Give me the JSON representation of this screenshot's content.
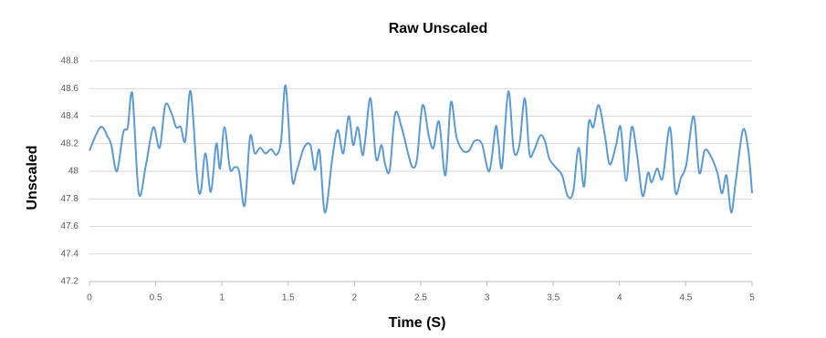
{
  "chart_data": {
    "type": "line",
    "title": "Raw Unscaled",
    "xlabel": "Time (S)",
    "ylabel": "Unscaled",
    "x": [
      0,
      0.083,
      0.138,
      0.165,
      0.207,
      0.255,
      0.289,
      0.324,
      0.372,
      0.427,
      0.482,
      0.53,
      0.572,
      0.62,
      0.654,
      0.689,
      0.723,
      0.764,
      0.813,
      0.84,
      0.875,
      0.916,
      0.957,
      0.985,
      1.019,
      1.06,
      1.095,
      1.129,
      1.171,
      1.212,
      1.247,
      1.288,
      1.329,
      1.371,
      1.412,
      1.446,
      1.481,
      1.529,
      1.563,
      1.618,
      1.667,
      1.701,
      1.736,
      1.777,
      1.832,
      1.873,
      1.915,
      1.956,
      1.99,
      2.025,
      2.059,
      2.08,
      2.121,
      2.163,
      2.204,
      2.231,
      2.266,
      2.307,
      2.355,
      2.404,
      2.438,
      2.472,
      2.514,
      2.562,
      2.596,
      2.638,
      2.686,
      2.727,
      2.769,
      2.817,
      2.865,
      2.906,
      2.961,
      3.017,
      3.065,
      3.085,
      3.113,
      3.161,
      3.202,
      3.244,
      3.285,
      3.32,
      3.354,
      3.402,
      3.437,
      3.471,
      3.526,
      3.567,
      3.609,
      3.65,
      3.691,
      3.733,
      3.767,
      3.802,
      3.843,
      3.891,
      3.926,
      3.974,
      4.008,
      4.05,
      4.091,
      4.132,
      4.174,
      4.215,
      4.242,
      4.284,
      4.325,
      4.38,
      4.421,
      4.463,
      4.504,
      4.559,
      4.601,
      4.642,
      4.683,
      4.738,
      4.773,
      4.807,
      4.842,
      4.876,
      4.931,
      4.972,
      5
    ],
    "series": [
      {
        "color": "#5b9bd5",
        "values": [
          48.15,
          48.32,
          48.25,
          48.19,
          48.0,
          48.28,
          48.32,
          48.56,
          47.84,
          48.05,
          48.32,
          48.17,
          48.48,
          48.42,
          48.32,
          48.32,
          48.22,
          48.58,
          47.95,
          47.85,
          48.13,
          47.85,
          48.2,
          48.02,
          48.32,
          48.02,
          48.03,
          48.0,
          47.75,
          48.25,
          48.13,
          48.17,
          48.13,
          48.16,
          48.12,
          48.22,
          48.62,
          47.95,
          48.0,
          48.17,
          48.19,
          48.01,
          48.15,
          47.7,
          48.09,
          48.3,
          48.13,
          48.4,
          48.19,
          48.32,
          48.12,
          48.22,
          48.53,
          48.09,
          48.19,
          48.05,
          48.01,
          48.42,
          48.32,
          48.13,
          48.03,
          48.09,
          48.48,
          48.25,
          48.17,
          48.36,
          47.97,
          48.5,
          48.25,
          48.15,
          48.15,
          48.22,
          48.2,
          48.0,
          48.32,
          48.22,
          48.03,
          48.58,
          48.15,
          48.19,
          48.53,
          48.13,
          48.15,
          48.26,
          48.22,
          48.09,
          48.02,
          47.97,
          47.82,
          47.85,
          48.17,
          47.89,
          48.35,
          48.32,
          48.48,
          48.25,
          48.05,
          48.19,
          48.32,
          47.93,
          48.32,
          48.12,
          47.82,
          47.99,
          47.92,
          48.02,
          47.95,
          48.32,
          47.85,
          47.95,
          48.05,
          48.4,
          47.99,
          48.15,
          48.12,
          47.99,
          47.84,
          47.97,
          47.7,
          47.92,
          48.3,
          48.15,
          47.84
        ]
      }
    ],
    "xlim": [
      0,
      5
    ],
    "xticks": [
      0,
      0.5,
      1,
      1.5,
      2,
      2.5,
      3,
      3.5,
      4,
      4.5,
      5
    ],
    "ylim": [
      47.2,
      48.8
    ],
    "yticks": [
      47.2,
      47.4,
      47.6,
      47.8,
      48,
      48.2,
      48.4,
      48.6,
      48.8
    ],
    "grid": true
  }
}
